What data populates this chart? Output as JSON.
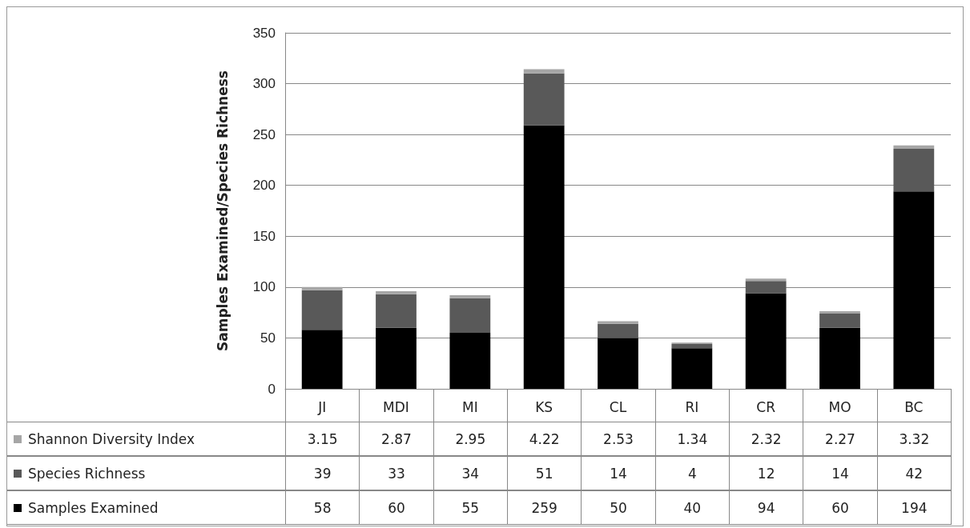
{
  "chart_data": {
    "type": "bar",
    "stacked": true,
    "ylabel": "Samples Examined/Species Richness",
    "categories": [
      "JI",
      "MDI",
      "MI",
      "KS",
      "CL",
      "RI",
      "CR",
      "MO",
      "BC"
    ],
    "series": [
      {
        "name": "Samples Examined",
        "color": "#000000",
        "values": [
          58,
          60,
          55,
          259,
          50,
          40,
          94,
          60,
          194
        ]
      },
      {
        "name": "Species Richness",
        "color": "#595959",
        "values": [
          39,
          33,
          34,
          51,
          14,
          4,
          12,
          14,
          42
        ]
      },
      {
        "name": "Shannon Diversity Index",
        "color": "#a6a6a6",
        "values": [
          3.15,
          2.87,
          2.95,
          4.22,
          2.53,
          1.34,
          2.32,
          2.27,
          3.32
        ]
      }
    ],
    "ylim": [
      0,
      350
    ],
    "yticks": [
      0,
      50,
      100,
      150,
      200,
      250,
      300,
      350
    ],
    "grid": "y",
    "legend": "bottom",
    "data_labels": true
  }
}
